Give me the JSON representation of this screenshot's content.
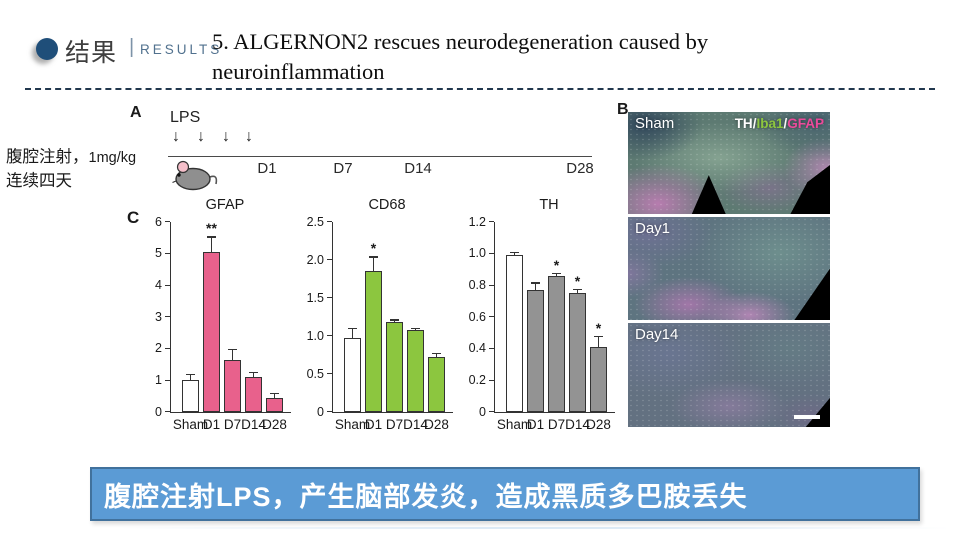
{
  "header": {
    "section_zh": "结果",
    "divider": "|",
    "section_en": "RESULTS",
    "title_line1": "5. ALGERNON2 rescues neurodegeneration caused by",
    "title_line2": "neuroinflammation"
  },
  "annotation": {
    "line1_zh": "腹腔注射，",
    "dose": "1mg/kg",
    "line2_zh": "连续四天"
  },
  "panelA": {
    "label": "A",
    "lps_label": "LPS",
    "arrow_glyph": "↓",
    "timeline_labels": [
      "D1",
      "D7",
      "D14",
      "D28"
    ]
  },
  "panelB": {
    "label": "B",
    "stain_legend": {
      "th": "TH",
      "sep1": "/",
      "iba1": "Iba1",
      "sep2": "/",
      "gfap": "GFAP"
    },
    "legend_colors": {
      "th": "#ffffff",
      "iba1": "#8dc63f",
      "gfap": "#ec4a9b"
    },
    "images": [
      {
        "label": "Sham"
      },
      {
        "label": "Day1"
      },
      {
        "label": "Day14"
      }
    ]
  },
  "panelC": {
    "label": "C"
  },
  "chart_data": [
    {
      "type": "bar",
      "title": "GFAP",
      "categories": [
        "Sham",
        "D1",
        "D7",
        "D14",
        "D28"
      ],
      "values": [
        1.0,
        5.05,
        1.65,
        1.12,
        0.45
      ],
      "errors": [
        0.2,
        0.5,
        0.35,
        0.15,
        0.15
      ],
      "significance": [
        "",
        "**",
        "",
        "",
        ""
      ],
      "bar_colors": [
        "#ffffff",
        "#e8618c",
        "#e8618c",
        "#e8618c",
        "#e8618c"
      ],
      "ylim": [
        0,
        6
      ],
      "ytick_labels": [
        "0",
        "1",
        "2",
        "3",
        "4",
        "5",
        "6"
      ],
      "xlabel": "",
      "ylabel": "",
      "grid": false,
      "legend": "none"
    },
    {
      "type": "bar",
      "title": "CD68",
      "categories": [
        "Sham",
        "D1",
        "D7",
        "D14",
        "D28"
      ],
      "values": [
        0.98,
        1.85,
        1.18,
        1.08,
        0.73
      ],
      "errors": [
        0.13,
        0.2,
        0.04,
        0.03,
        0.05
      ],
      "significance": [
        "",
        "*",
        "",
        "",
        ""
      ],
      "bar_colors": [
        "#ffffff",
        "#8cc63f",
        "#8cc63f",
        "#8cc63f",
        "#8cc63f"
      ],
      "ylim": [
        0,
        2.5
      ],
      "ytick_labels": [
        "0",
        "0.5",
        "1.0",
        "1.5",
        "2.0",
        "2.5"
      ],
      "xlabel": "",
      "ylabel": "",
      "grid": false,
      "legend": "none"
    },
    {
      "type": "bar",
      "title": "TH",
      "categories": [
        "Sham",
        "D1",
        "D7",
        "D14",
        "D28"
      ],
      "values": [
        0.99,
        0.77,
        0.86,
        0.75,
        0.41
      ],
      "errors": [
        0.02,
        0.05,
        0.02,
        0.03,
        0.07
      ],
      "significance": [
        "",
        "",
        "*",
        "*",
        "*"
      ],
      "bar_colors": [
        "#ffffff",
        "#939393",
        "#939393",
        "#939393",
        "#939393"
      ],
      "ylim": [
        0,
        1.2
      ],
      "ytick_labels": [
        "0",
        "0.2",
        "0.4",
        "0.6",
        "0.8",
        "1.0",
        "1.2"
      ],
      "xlabel": "",
      "ylabel": "",
      "grid": false,
      "legend": "none"
    }
  ],
  "banner": {
    "text": "腹腔注射LPS，产生脑部发炎，造成黑质多巴胺丢失",
    "bg_color": "#5b9bd5",
    "border_color": "#41719c",
    "text_color": "#ffffff"
  },
  "colors": {
    "header_bullet": "#1f4e79",
    "results_text": "#51718e",
    "gfap_bar": "#e8618c",
    "cd68_bar": "#8cc63f",
    "th_bar": "#939393",
    "axis": "#333333"
  }
}
